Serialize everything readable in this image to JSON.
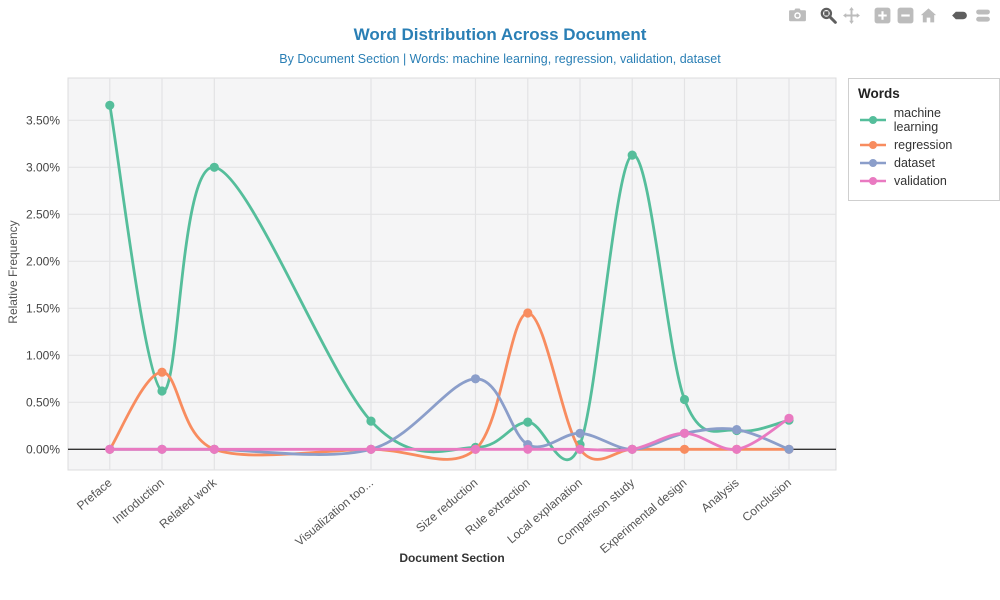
{
  "header": {
    "title": "Word Distribution Across Document",
    "subtitle": "By Document Section | Words: machine learning, regression, validation, dataset",
    "title_color": "#2a7fb5"
  },
  "modebar": {
    "icons": [
      "camera",
      "zoom",
      "pan",
      "zoom-in",
      "zoom-out",
      "home",
      "hover-closest",
      "hover-compare"
    ],
    "active_icons": [
      "zoom",
      "hover-closest"
    ],
    "idle_color": "#bcbcbc",
    "active_color": "#5f5f5f"
  },
  "legend": {
    "title": "Words",
    "items": [
      {
        "label": "machine learning",
        "color": "#55be9b"
      },
      {
        "label": "regression",
        "color": "#f88c5f"
      },
      {
        "label": "dataset",
        "color": "#8b9eca"
      },
      {
        "label": "validation",
        "color": "#e97ac1"
      }
    ]
  },
  "chart_data": {
    "type": "line",
    "line_shape": "spline",
    "title": "Word Distribution Across Document",
    "xlabel": "Document Section",
    "ylabel": "Relative Frequency",
    "categories": [
      "Preface",
      "Introduction",
      "Related work",
      "Visualization too...",
      "Size reduction",
      "Rule extraction",
      "Local explanation",
      "Comparison study",
      "Experimental design",
      "Analysis",
      "Conclusion"
    ],
    "x_positions": [
      0,
      1,
      2,
      5,
      7,
      8,
      9,
      10,
      11,
      12,
      13
    ],
    "series": [
      {
        "name": "machine learning",
        "color": "#55be9b",
        "values": [
          3.66,
          0.62,
          3.0,
          0.3,
          0.02,
          0.29,
          0.05,
          3.13,
          0.53,
          0.2,
          0.31
        ]
      },
      {
        "name": "regression",
        "color": "#f88c5f",
        "values": [
          0,
          0.82,
          0,
          0,
          0,
          1.45,
          0,
          0,
          0,
          0,
          0
        ]
      },
      {
        "name": "dataset",
        "color": "#8b9eca",
        "values": [
          0,
          0,
          0,
          0,
          0.75,
          0.05,
          0.17,
          0,
          0.17,
          0.21,
          0
        ]
      },
      {
        "name": "validation",
        "color": "#e97ac1",
        "values": [
          0,
          0,
          0,
          0,
          0,
          0,
          0,
          0,
          0.17,
          0,
          0.33
        ]
      }
    ],
    "yticks": [
      0,
      0.5,
      1,
      1.5,
      2,
      2.5,
      3,
      3.5
    ],
    "ytick_labels": [
      "0.00%",
      "0.50%",
      "1.00%",
      "1.50%",
      "2.00%",
      "2.50%",
      "3.00%",
      "3.50%"
    ],
    "ylim": [
      -0.22,
      3.95
    ],
    "xlim": [
      -0.8,
      13.9
    ],
    "grid": true,
    "legend_position": "top-right",
    "zero_line_color": "#333333",
    "plot_bg": "#f5f5f6",
    "grid_color": "#e3e3e5"
  }
}
